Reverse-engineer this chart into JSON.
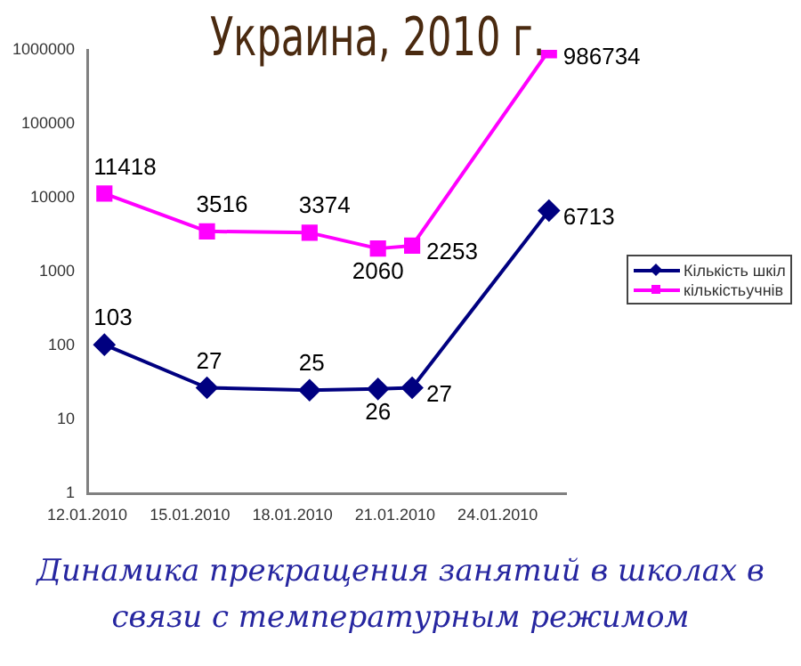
{
  "chart_data": {
    "type": "line",
    "title": "Украина, 2010 г.",
    "subtitle": "Динамика прекращения занятий в школах в связи с температурным режимом",
    "x": [
      "2010-01-12T12:00",
      "2010-01-15T12:00",
      "2010-01-18T12:00",
      "2010-01-20T12:00",
      "2010-01-21T12:00",
      "2010-01-25T12:00"
    ],
    "series": [
      {
        "name": "Кількість шкіл",
        "color": "#000080",
        "marker": "diamond",
        "values": [
          103,
          27,
          25,
          26,
          27,
          6713
        ]
      },
      {
        "name": "кількістьучнів",
        "color": "#ff00ff",
        "marker": "square",
        "values": [
          11418,
          3516,
          3374,
          2060,
          2253,
          986734
        ]
      }
    ],
    "xlim": [
      "2010-01-12",
      "2010-01-26"
    ],
    "xticks": [
      {
        "value": "2010-01-12",
        "label": "12.01.2010"
      },
      {
        "value": "2010-01-15",
        "label": "15.01.2010"
      },
      {
        "value": "2010-01-18",
        "label": "18.01.2010"
      },
      {
        "value": "2010-01-21",
        "label": "21.01.2010"
      },
      {
        "value": "2010-01-24",
        "label": "24.01.2010"
      }
    ],
    "log": true,
    "ylim": [
      1,
      1000000
    ],
    "yticks": [
      1,
      10,
      100,
      1000,
      10000,
      100000,
      1000000
    ],
    "grid": false,
    "legend": "right",
    "data_labels": true,
    "line_style": "solid"
  }
}
